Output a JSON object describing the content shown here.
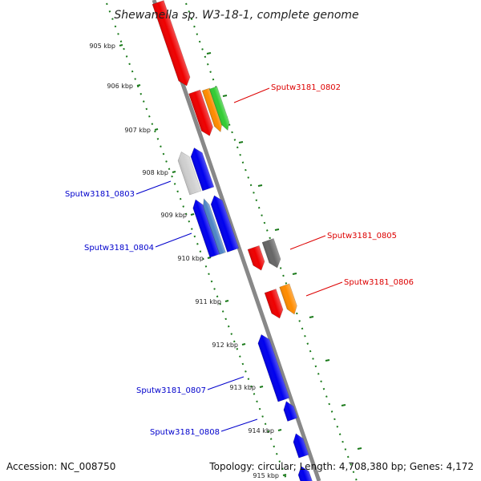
{
  "title": "Shewanella sp. W3-18-1, complete genome",
  "footer": {
    "accession": "Accession: NC_008750",
    "summary": "Topology: circular; Length: 4,708,380 bp; Genes: 4,172"
  },
  "ticks": [
    "905 kbp",
    "906 kbp",
    "907 kbp",
    "908 kbp",
    "909 kbp",
    "910 kbp",
    "911 kbp",
    "912 kbp",
    "913 kbp",
    "914 kbp",
    "915 kbp"
  ],
  "gene_labels": [
    {
      "text": "Sputw3181_0802",
      "color": "#dd0000"
    },
    {
      "text": "Sputw3181_0803",
      "color": "#0000cc"
    },
    {
      "text": "Sputw3181_0804",
      "color": "#0000cc"
    },
    {
      "text": "Sputw3181_0805",
      "color": "#dd0000"
    },
    {
      "text": "Sputw3181_0806",
      "color": "#dd0000"
    },
    {
      "text": "Sputw3181_0807",
      "color": "#0000cc"
    },
    {
      "text": "Sputw3181_0808",
      "color": "#0000cc"
    }
  ],
  "gene_colors": {
    "red": "#ee0000",
    "orange": "#ff8c00",
    "green": "#33cc33",
    "blue": "#0000ee",
    "steelblue": "#4f86c6",
    "gray": "#666666",
    "lightgray": "#cfcfcf"
  },
  "tick_color": "#1a7a1a"
}
